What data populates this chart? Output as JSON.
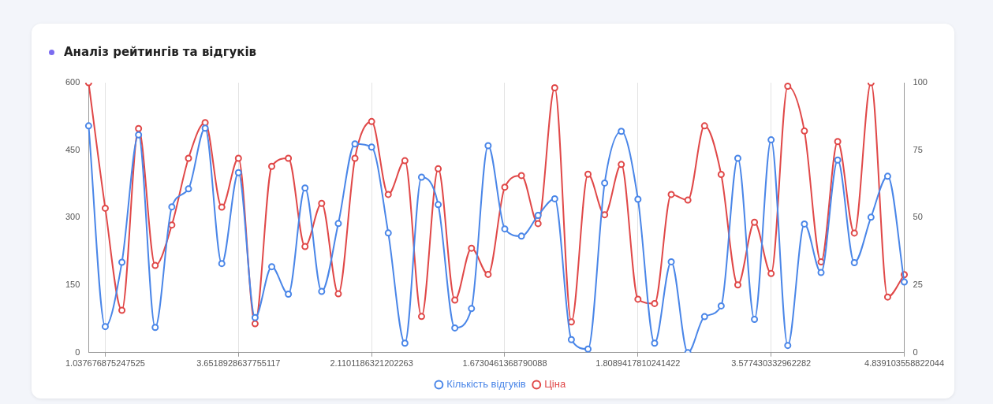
{
  "chart_data": {
    "type": "line",
    "title": "Аналіз рейтингів та відгуків",
    "categories": [
      null,
      "1.037676875247525",
      null,
      null,
      null,
      null,
      null,
      null,
      null,
      "3.6518928637755117",
      null,
      null,
      null,
      null,
      null,
      null,
      null,
      "2.1101186321202263",
      null,
      null,
      null,
      null,
      null,
      null,
      null,
      "1.6730461368790088",
      null,
      null,
      null,
      null,
      null,
      null,
      null,
      "1.8089417810241422",
      null,
      null,
      null,
      null,
      null,
      null,
      null,
      "3.577430332962282",
      null,
      null,
      null,
      null,
      null,
      null,
      null,
      "4.839103558822044"
    ],
    "series": [
      {
        "name": "Кількість відгуків",
        "color": "#4a86e8",
        "values": [
          504,
          58,
          201,
          484,
          56,
          324,
          364,
          499,
          198,
          400,
          78,
          191,
          130,
          366,
          136,
          287,
          464,
          457,
          266,
          21,
          390,
          329,
          55,
          98,
          460,
          275,
          259,
          305,
          342,
          29,
          8,
          377,
          492,
          341,
          21,
          202,
          0,
          80,
          104,
          432,
          74,
          473,
          16,
          286,
          178,
          428,
          200,
          301,
          392,
          157
        ]
      },
      {
        "name": "Ціна",
        "color": "#e04848",
        "axis": "y2",
        "values": [
          100,
          53.5,
          15.7,
          83,
          32.3,
          47.3,
          72,
          85.2,
          53.9,
          72,
          10.7,
          69,
          72,
          39.3,
          55.3,
          21.8,
          72,
          85.6,
          58.6,
          71.1,
          13.4,
          68.1,
          19.5,
          38.7,
          29,
          61.3,
          65.6,
          47.8,
          98.1,
          11.4,
          66.1,
          51.1,
          69.7,
          19.8,
          18.2,
          58.6,
          56.5,
          84,
          66,
          25.1,
          48.3,
          29.3,
          98.7,
          82.1,
          33.6,
          78.2,
          44.3,
          100,
          20.6,
          28.9
        ]
      }
    ],
    "ylim": [
      0,
      600
    ],
    "yticks": [
      0,
      150,
      300,
      450,
      600
    ],
    "y2lim": [
      0,
      100
    ],
    "y2ticks": [
      0,
      25,
      50,
      75,
      100
    ],
    "grid": "x",
    "legend": "bottom",
    "marker": "circle"
  }
}
